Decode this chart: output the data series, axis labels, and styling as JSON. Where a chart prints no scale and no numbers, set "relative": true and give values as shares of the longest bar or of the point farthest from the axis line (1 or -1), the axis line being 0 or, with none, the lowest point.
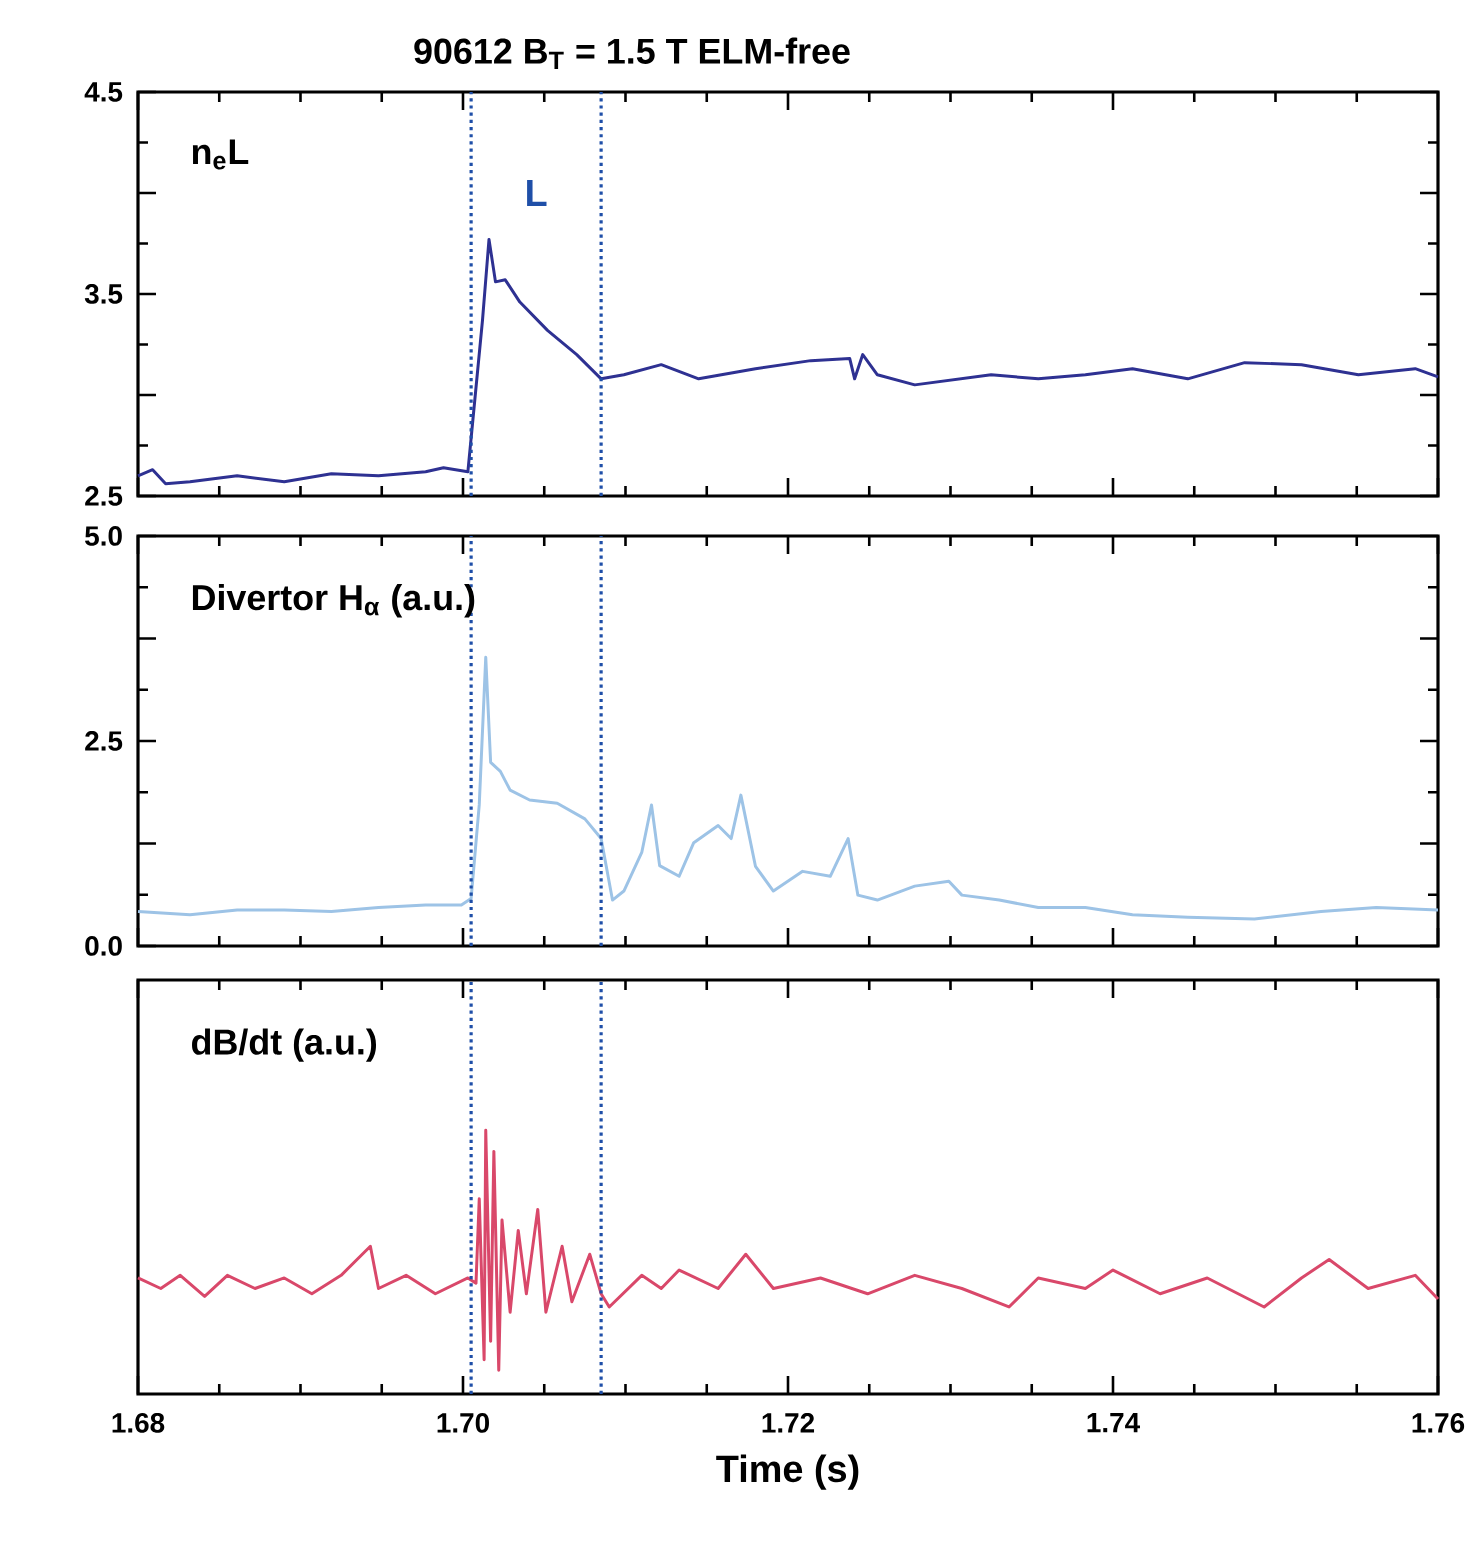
{
  "chart_data": [
    {
      "type": "line",
      "title": "90612 B$_{T}$ = 1.5 T ELM-free",
      "annotations": [
        "n$_{e}$L",
        "L"
      ],
      "xlim": [
        1.68,
        1.76
      ],
      "xticks": [
        1.68,
        1.7,
        1.72,
        1.74,
        1.76
      ],
      "ylim": [
        2.5,
        4.5
      ],
      "yticks": [
        2.5,
        {
          "value": 3.0,
          "label": null
        },
        3.5,
        {
          "value": 4.0,
          "label": null
        },
        4.5
      ],
      "tick_labels": "y",
      "line_style": "solid",
      "ref_lines": [
        {
          "axis": "x",
          "value": 1.7005,
          "color": "#1f4fa8",
          "line_style": "dotted"
        },
        {
          "axis": "x",
          "value": 1.7085,
          "color": "#1f4fa8",
          "line_style": "dotted"
        }
      ],
      "series": [
        {
          "color": "#2e3192",
          "x": [
            1.68,
            1.6809,
            1.6817,
            1.6832,
            1.6861,
            1.689,
            1.6919,
            1.6948,
            1.6977,
            1.6988,
            1.7003,
            1.7012,
            1.7016,
            1.702,
            1.7026,
            1.7035,
            1.7052,
            1.707,
            1.7085,
            1.7099,
            1.7122,
            1.7145,
            1.718,
            1.7214,
            1.7238,
            1.7241,
            1.7246,
            1.7255,
            1.7278,
            1.7325,
            1.7354,
            1.7383,
            1.7412,
            1.7446,
            1.7481,
            1.7516,
            1.7551,
            1.7586,
            1.76
          ],
          "values": [
            2.6,
            2.63,
            2.56,
            2.57,
            2.6,
            2.57,
            2.61,
            2.6,
            2.62,
            2.64,
            2.62,
            3.37,
            3.77,
            3.56,
            3.57,
            3.46,
            3.32,
            3.2,
            3.08,
            3.1,
            3.15,
            3.08,
            3.13,
            3.17,
            3.18,
            3.08,
            3.2,
            3.1,
            3.05,
            3.1,
            3.08,
            3.1,
            3.13,
            3.08,
            3.16,
            3.15,
            3.1,
            3.13,
            3.09
          ]
        }
      ]
    },
    {
      "type": "line",
      "annotations": [
        "Divertor H$_{α}$ (a.u.)"
      ],
      "xlim": [
        1.68,
        1.76
      ],
      "xticks": [
        1.68,
        1.7,
        1.72,
        1.74,
        1.76
      ],
      "ylim": [
        0.0,
        5.0
      ],
      "yticks": [
        {
          "value": 0.0,
          "label": "0.0"
        },
        {
          "value": 1.25,
          "label": null
        },
        2.5,
        {
          "value": 3.75,
          "label": null
        },
        {
          "value": 5.0,
          "label": "5.0"
        }
      ],
      "tick_labels": "y",
      "line_style": "solid",
      "ref_lines": [
        {
          "axis": "x",
          "value": 1.7005,
          "color": "#1f4fa8",
          "line_style": "dotted"
        },
        {
          "axis": "x",
          "value": 1.7085,
          "color": "#1f4fa8",
          "line_style": "dotted"
        }
      ],
      "series": [
        {
          "color": "#9dc3e6",
          "x": [
            1.68,
            1.6832,
            1.6861,
            1.689,
            1.6919,
            1.6948,
            1.6977,
            1.6999,
            1.7005,
            1.701,
            1.7014,
            1.7017,
            1.7023,
            1.7029,
            1.7041,
            1.7058,
            1.7075,
            1.7085,
            1.7092,
            1.7099,
            1.711,
            1.7116,
            1.7121,
            1.7133,
            1.7142,
            1.7157,
            1.7165,
            1.7171,
            1.718,
            1.7191,
            1.7209,
            1.7226,
            1.7237,
            1.7243,
            1.7255,
            1.7278,
            1.7299,
            1.7307,
            1.733,
            1.7354,
            1.7383,
            1.7412,
            1.7446,
            1.7487,
            1.7528,
            1.7562,
            1.76
          ],
          "values": [
            0.42,
            0.38,
            0.44,
            0.44,
            0.42,
            0.47,
            0.5,
            0.5,
            0.58,
            1.72,
            3.52,
            2.24,
            2.13,
            1.9,
            1.78,
            1.74,
            1.55,
            1.31,
            0.56,
            0.67,
            1.14,
            1.72,
            0.98,
            0.85,
            1.26,
            1.47,
            1.31,
            1.84,
            0.97,
            0.67,
            0.91,
            0.85,
            1.31,
            0.62,
            0.56,
            0.73,
            0.79,
            0.62,
            0.56,
            0.47,
            0.47,
            0.38,
            0.35,
            0.33,
            0.42,
            0.47,
            0.44
          ]
        }
      ]
    },
    {
      "type": "line",
      "relative": true,
      "xlabel": "Time (s)",
      "annotations": [
        "dB/dt (a.u.)"
      ],
      "xlim": [
        1.68,
        1.76
      ],
      "xticks": [
        1.68,
        {
          "value": 1.7,
          "label": "1.70"
        },
        1.72,
        1.74,
        1.76
      ],
      "tick_labels": "x",
      "line_style": "solid",
      "ref_lines": [
        {
          "axis": "x",
          "value": 1.7005,
          "color": "#1f4fa8",
          "line_style": "dotted"
        },
        {
          "axis": "x",
          "value": 1.7085,
          "color": "#1f4fa8",
          "line_style": "dotted"
        }
      ],
      "series": [
        {
          "color": "#d9486a",
          "x": [
            1.68,
            1.6814,
            1.6826,
            1.6841,
            1.6855,
            1.6872,
            1.689,
            1.6907,
            1.6925,
            1.6943,
            1.6948,
            1.6965,
            1.6983,
            1.7003,
            1.7008,
            1.701,
            1.7013,
            1.7014,
            1.7017,
            1.7019,
            1.7022,
            1.7024,
            1.7029,
            1.7034,
            1.7039,
            1.7046,
            1.7051,
            1.7061,
            1.7067,
            1.7078,
            1.7085,
            1.709,
            1.711,
            1.7122,
            1.7133,
            1.7157,
            1.7174,
            1.7191,
            1.722,
            1.7249,
            1.7278,
            1.7307,
            1.7336,
            1.7354,
            1.7383,
            1.74,
            1.7429,
            1.7458,
            1.7493,
            1.7516,
            1.7533,
            1.7557,
            1.7586,
            1.76
          ],
          "values": [
            0.44,
            0.4,
            0.45,
            0.37,
            0.45,
            0.4,
            0.44,
            0.38,
            0.45,
            0.56,
            0.4,
            0.45,
            0.38,
            0.44,
            0.42,
            0.74,
            0.13,
            1.0,
            0.2,
            0.92,
            0.09,
            0.66,
            0.31,
            0.62,
            0.38,
            0.7,
            0.31,
            0.56,
            0.35,
            0.53,
            0.38,
            0.33,
            0.45,
            0.4,
            0.47,
            0.4,
            0.53,
            0.4,
            0.44,
            0.38,
            0.45,
            0.4,
            0.33,
            0.44,
            0.4,
            0.47,
            0.38,
            0.44,
            0.33,
            0.44,
            0.51,
            0.4,
            0.45,
            0.36
          ]
        }
      ]
    }
  ]
}
